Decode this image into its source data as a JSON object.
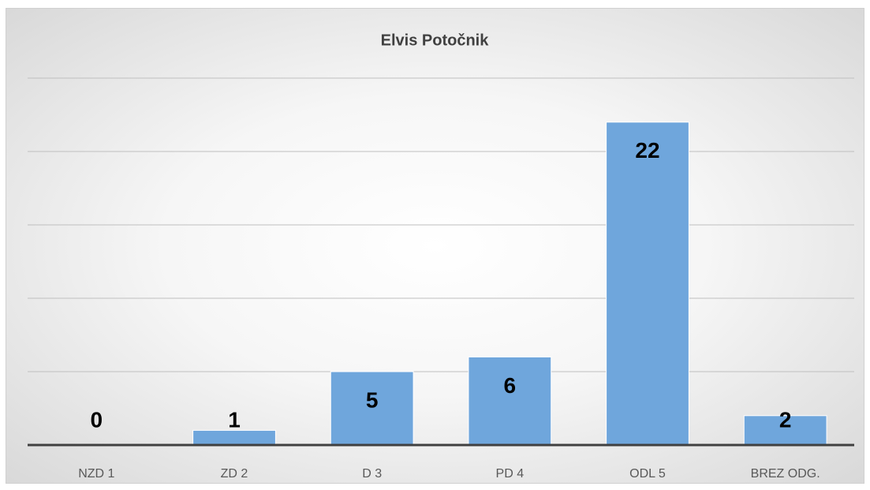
{
  "chart_data": {
    "type": "bar",
    "title": "Elvis Potočnik",
    "categories": [
      "NZD 1",
      "ZD 2",
      "D 3",
      "PD 4",
      "ODL 5",
      "BREZ ODG."
    ],
    "values": [
      0,
      1,
      5,
      6,
      22,
      2
    ],
    "color": "#6fa6dc",
    "ylim": [
      0,
      25
    ],
    "yticks": [
      0,
      5,
      10,
      15,
      20,
      25
    ],
    "grid": true
  }
}
